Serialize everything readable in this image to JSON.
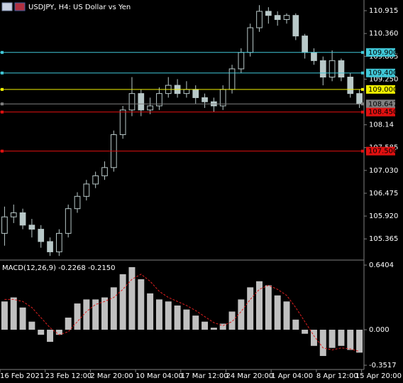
{
  "chart_data": [
    {
      "type": "candlestick",
      "title": "USDJPY, H4:  US Dollar vs Yen",
      "open": [
        105.5,
        105.9,
        106.0,
        105.7,
        105.6,
        105.3,
        105.05,
        105.5,
        106.1,
        106.4,
        106.7,
        106.9,
        107.1,
        107.9,
        108.5,
        108.9,
        108.5,
        108.6,
        108.9,
        109.1,
        108.9,
        109.0,
        108.8,
        108.7,
        108.6,
        109.0,
        109.5,
        109.9,
        110.5,
        110.9,
        110.8,
        110.7,
        110.8,
        110.3,
        109.9,
        109.7,
        109.3,
        109.7,
        109.3,
        108.9
      ],
      "high": [
        106.15,
        106.2,
        106.1,
        105.85,
        105.7,
        105.4,
        105.6,
        106.2,
        106.5,
        106.8,
        107.0,
        107.25,
        108.0,
        108.6,
        109.3,
        109.0,
        108.8,
        109.05,
        109.3,
        109.25,
        109.2,
        109.1,
        108.9,
        108.8,
        109.1,
        109.6,
        110.0,
        110.6,
        111.05,
        111.0,
        110.9,
        110.85,
        110.85,
        110.35,
        110.0,
        109.8,
        109.95,
        109.75,
        109.4,
        109.0
      ],
      "low": [
        105.2,
        105.75,
        105.6,
        105.4,
        105.15,
        104.95,
        104.95,
        105.4,
        106.0,
        106.3,
        106.6,
        106.8,
        107.0,
        107.8,
        108.35,
        108.35,
        108.4,
        108.5,
        108.8,
        108.8,
        108.8,
        108.65,
        108.55,
        108.45,
        108.5,
        108.9,
        109.4,
        109.8,
        110.4,
        110.6,
        110.55,
        110.6,
        110.2,
        109.75,
        109.6,
        109.1,
        109.2,
        109.2,
        108.8,
        108.55
      ],
      "close": [
        105.9,
        106.0,
        105.7,
        105.6,
        105.3,
        105.05,
        105.5,
        106.1,
        106.4,
        106.7,
        106.9,
        107.1,
        107.9,
        108.5,
        108.9,
        108.5,
        108.6,
        108.9,
        109.1,
        108.9,
        109.0,
        108.8,
        108.7,
        108.6,
        109.0,
        109.5,
        109.9,
        110.5,
        110.9,
        110.8,
        110.7,
        110.8,
        110.3,
        109.9,
        109.7,
        109.3,
        109.7,
        109.3,
        108.9,
        108.647
      ],
      "color": "#b8c8c8",
      "ylim": [
        104.85,
        111.175
      ],
      "yticks": [
        110.915,
        {
          "value": 110.36,
          "label": "110.360"
        },
        109.805,
        {
          "value": 109.25,
          "label": "109.250"
        },
        108.14,
        107.585,
        {
          "value": 107.03,
          "label": "107.030"
        },
        106.475,
        {
          "value": 105.92,
          "label": "105.920"
        },
        105.365
      ],
      "levels": [
        {
          "value": 109.9,
          "label": "109.900",
          "color": "#40c8d8"
        },
        {
          "value": 109.4,
          "label": "109.400",
          "color": "#40c8d8"
        },
        {
          "value": 109.0,
          "label": "109.000",
          "color": "#f0f000"
        },
        {
          "value": 108.647,
          "label": "108.647",
          "color": "#808080"
        },
        {
          "value": 108.45,
          "label": "108.450",
          "color": "#e01010"
        },
        {
          "value": 107.5,
          "label": "107.500",
          "color": "#e01010"
        }
      ]
    },
    {
      "type": "macd",
      "title": "MACD(12,26,9) -0.2268 -0.2150",
      "values": [
        0.28,
        0.32,
        0.22,
        0.08,
        -0.05,
        -0.12,
        -0.05,
        0.12,
        0.26,
        0.3,
        0.3,
        0.32,
        0.42,
        0.55,
        0.62,
        0.5,
        0.36,
        0.3,
        0.28,
        0.24,
        0.2,
        0.14,
        0.08,
        0.02,
        0.06,
        0.18,
        0.3,
        0.42,
        0.48,
        0.44,
        0.34,
        0.28,
        0.1,
        -0.04,
        -0.16,
        -0.26,
        -0.18,
        -0.16,
        -0.2,
        -0.2268
      ],
      "signal": [
        0.3,
        0.3,
        0.28,
        0.22,
        0.12,
        0.02,
        -0.05,
        -0.02,
        0.08,
        0.18,
        0.25,
        0.28,
        0.32,
        0.4,
        0.5,
        0.55,
        0.48,
        0.38,
        0.32,
        0.28,
        0.24,
        0.19,
        0.13,
        0.07,
        0.04,
        0.08,
        0.18,
        0.3,
        0.4,
        0.44,
        0.4,
        0.34,
        0.22,
        0.08,
        -0.06,
        -0.18,
        -0.2,
        -0.18,
        -0.19,
        -0.215
      ],
      "color": "#c0c0c0",
      "signal_color": "#e02020",
      "ylim": [
        -0.394,
        0.683
      ],
      "yticks": [
        0.6404,
        {
          "value": 0,
          "label": "0.000"
        },
        -0.3517
      ],
      "time_labels": [
        "16 Feb 2021",
        "23 Feb 12:00",
        "2 Mar 20:00",
        "10 Mar 04:00",
        "17 Mar 12:00",
        "24 Mar 20:00",
        "1 Apr 04:00",
        "8 Apr 12:00",
        "15 Apr 20:00"
      ]
    }
  ]
}
